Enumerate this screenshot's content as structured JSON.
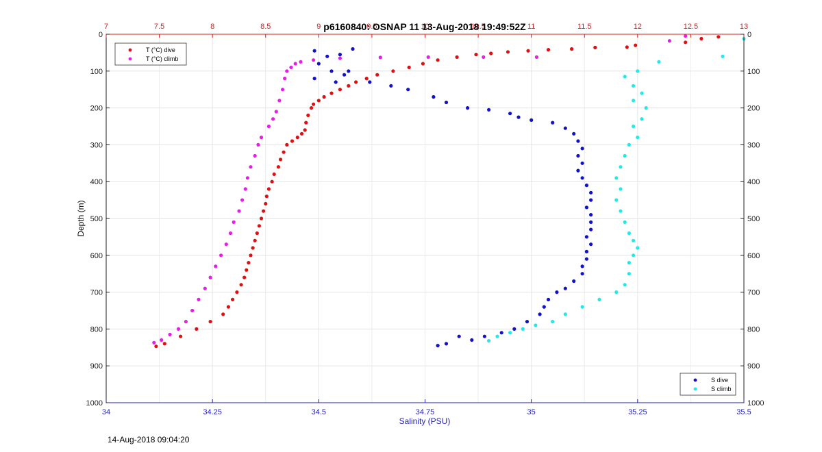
{
  "chart_data": {
    "type": "scatter",
    "title": "p6160840: OSNAP 11 13-Aug-2018 19:49:52Z",
    "xlabel": "Salinity (PSU)",
    "ylabel": "Depth (m)",
    "ylim": [
      0,
      1000
    ],
    "y_reversed": true,
    "bottom_axis": {
      "quantity": "salinity",
      "range": [
        34,
        35.5
      ],
      "ticks": [
        34,
        34.25,
        34.5,
        34.75,
        35,
        35.25,
        35.5
      ],
      "tick_labels": [
        "34",
        "34.25",
        "34.5",
        "34.75",
        "35",
        "35.25",
        "35.5"
      ],
      "color": "#1f1fbf"
    },
    "top_axis": {
      "quantity": "temperature",
      "range": [
        7,
        13
      ],
      "ticks": [
        7,
        7.5,
        8,
        8.5,
        9,
        9.5,
        10,
        10.5,
        11,
        11.5,
        12,
        12.5,
        13
      ],
      "tick_labels": [
        "7",
        "7.5",
        "8",
        "8.5",
        "9",
        "9.5",
        "10",
        "10.5",
        "11",
        "11.5",
        "12",
        "12.5",
        "13"
      ],
      "color": "#cc2222"
    },
    "y_ticks": [
      0,
      100,
      200,
      300,
      400,
      500,
      600,
      700,
      800,
      900,
      1000
    ],
    "y_tick_labels": [
      "0",
      "100",
      "200",
      "300",
      "400",
      "500",
      "600",
      "700",
      "800",
      "900",
      "1000"
    ],
    "grid": true,
    "legends": [
      {
        "placement": "top-left",
        "entries": [
          "T (°C) dive",
          "T (°C) climb"
        ]
      },
      {
        "placement": "bottom-right",
        "entries": [
          "S dive",
          "S climb"
        ]
      }
    ],
    "series": [
      {
        "name": "T (°C) dive",
        "axis": "top",
        "color": "#dd1111",
        "points": [
          [
            12.76,
            7
          ],
          [
            12.6,
            12
          ],
          [
            12.45,
            22
          ],
          [
            11.98,
            30
          ],
          [
            11.9,
            35
          ],
          [
            11.6,
            36
          ],
          [
            11.38,
            40
          ],
          [
            11.16,
            42
          ],
          [
            10.97,
            45
          ],
          [
            10.78,
            48
          ],
          [
            10.62,
            52
          ],
          [
            10.48,
            55
          ],
          [
            10.3,
            62
          ],
          [
            10.12,
            70
          ],
          [
            9.98,
            80
          ],
          [
            9.85,
            90
          ],
          [
            9.7,
            100
          ],
          [
            9.55,
            110
          ],
          [
            9.45,
            120
          ],
          [
            9.35,
            130
          ],
          [
            9.28,
            140
          ],
          [
            9.2,
            150
          ],
          [
            9.12,
            160
          ],
          [
            9.05,
            170
          ],
          [
            9.0,
            180
          ],
          [
            8.95,
            190
          ],
          [
            8.93,
            200
          ],
          [
            8.9,
            220
          ],
          [
            8.88,
            240
          ],
          [
            8.87,
            260
          ],
          [
            8.84,
            270
          ],
          [
            8.8,
            280
          ],
          [
            8.75,
            290
          ],
          [
            8.7,
            300
          ],
          [
            8.67,
            320
          ],
          [
            8.64,
            340
          ],
          [
            8.62,
            360
          ],
          [
            8.58,
            380
          ],
          [
            8.56,
            400
          ],
          [
            8.53,
            420
          ],
          [
            8.51,
            440
          ],
          [
            8.5,
            460
          ],
          [
            8.48,
            480
          ],
          [
            8.46,
            500
          ],
          [
            8.44,
            520
          ],
          [
            8.42,
            540
          ],
          [
            8.4,
            560
          ],
          [
            8.38,
            580
          ],
          [
            8.36,
            600
          ],
          [
            8.34,
            620
          ],
          [
            8.32,
            640
          ],
          [
            8.3,
            660
          ],
          [
            8.27,
            680
          ],
          [
            8.23,
            700
          ],
          [
            8.19,
            720
          ],
          [
            8.15,
            740
          ],
          [
            8.1,
            760
          ],
          [
            7.98,
            780
          ],
          [
            7.85,
            800
          ],
          [
            7.7,
            820
          ],
          [
            7.55,
            840
          ],
          [
            7.47,
            847
          ]
        ]
      },
      {
        "name": "T (°C) climb",
        "axis": "top",
        "color": "#e61ee6",
        "points": [
          [
            12.45,
            5
          ],
          [
            12.3,
            18
          ],
          [
            11.05,
            62
          ],
          [
            10.55,
            62
          ],
          [
            10.03,
            62
          ],
          [
            9.58,
            63
          ],
          [
            9.2,
            65
          ],
          [
            8.95,
            70
          ],
          [
            8.83,
            75
          ],
          [
            8.78,
            80
          ],
          [
            8.74,
            90
          ],
          [
            8.7,
            100
          ],
          [
            8.68,
            120
          ],
          [
            8.66,
            150
          ],
          [
            8.63,
            180
          ],
          [
            8.6,
            210
          ],
          [
            8.57,
            230
          ],
          [
            8.53,
            250
          ],
          [
            8.46,
            280
          ],
          [
            8.43,
            300
          ],
          [
            8.4,
            330
          ],
          [
            8.36,
            360
          ],
          [
            8.33,
            390
          ],
          [
            8.31,
            420
          ],
          [
            8.28,
            450
          ],
          [
            8.25,
            480
          ],
          [
            8.2,
            510
          ],
          [
            8.17,
            540
          ],
          [
            8.13,
            570
          ],
          [
            8.08,
            600
          ],
          [
            8.03,
            630
          ],
          [
            7.98,
            660
          ],
          [
            7.93,
            690
          ],
          [
            7.87,
            720
          ],
          [
            7.81,
            750
          ],
          [
            7.75,
            780
          ],
          [
            7.68,
            800
          ],
          [
            7.6,
            815
          ],
          [
            7.52,
            830
          ],
          [
            7.45,
            837
          ]
        ]
      },
      {
        "name": "S dive",
        "axis": "bottom",
        "color": "#1212c8",
        "points": [
          [
            34.49,
            45
          ],
          [
            34.52,
            60
          ],
          [
            34.55,
            55
          ],
          [
            34.58,
            40
          ],
          [
            34.5,
            80
          ],
          [
            34.53,
            100
          ],
          [
            34.56,
            110
          ],
          [
            34.49,
            120
          ],
          [
            34.54,
            130
          ],
          [
            34.57,
            100
          ],
          [
            34.62,
            130
          ],
          [
            34.67,
            140
          ],
          [
            34.71,
            150
          ],
          [
            34.77,
            170
          ],
          [
            34.8,
            185
          ],
          [
            34.85,
            200
          ],
          [
            34.9,
            205
          ],
          [
            34.95,
            215
          ],
          [
            34.97,
            225
          ],
          [
            35.0,
            233
          ],
          [
            35.05,
            240
          ],
          [
            35.08,
            255
          ],
          [
            35.1,
            270
          ],
          [
            35.11,
            290
          ],
          [
            35.12,
            310
          ],
          [
            35.11,
            330
          ],
          [
            35.12,
            350
          ],
          [
            35.11,
            370
          ],
          [
            35.12,
            390
          ],
          [
            35.13,
            410
          ],
          [
            35.14,
            430
          ],
          [
            35.14,
            450
          ],
          [
            35.13,
            470
          ],
          [
            35.14,
            490
          ],
          [
            35.14,
            510
          ],
          [
            35.14,
            530
          ],
          [
            35.13,
            550
          ],
          [
            35.14,
            570
          ],
          [
            35.13,
            590
          ],
          [
            35.13,
            610
          ],
          [
            35.12,
            630
          ],
          [
            35.12,
            650
          ],
          [
            35.1,
            670
          ],
          [
            35.08,
            690
          ],
          [
            35.06,
            700
          ],
          [
            35.04,
            720
          ],
          [
            35.03,
            740
          ],
          [
            35.02,
            760
          ],
          [
            34.99,
            780
          ],
          [
            34.96,
            800
          ],
          [
            34.93,
            810
          ],
          [
            34.89,
            820
          ],
          [
            34.86,
            830
          ],
          [
            34.83,
            820
          ],
          [
            34.8,
            840
          ],
          [
            34.78,
            845
          ]
        ]
      },
      {
        "name": "S climb",
        "axis": "bottom",
        "color": "#22e8e8",
        "points": [
          [
            35.5,
            12
          ],
          [
            35.45,
            60
          ],
          [
            35.3,
            75
          ],
          [
            35.25,
            100
          ],
          [
            35.22,
            115
          ],
          [
            35.24,
            140
          ],
          [
            35.26,
            160
          ],
          [
            35.24,
            180
          ],
          [
            35.27,
            200
          ],
          [
            35.26,
            230
          ],
          [
            35.24,
            250
          ],
          [
            35.25,
            280
          ],
          [
            35.23,
            300
          ],
          [
            35.22,
            330
          ],
          [
            35.21,
            360
          ],
          [
            35.2,
            390
          ],
          [
            35.21,
            420
          ],
          [
            35.2,
            450
          ],
          [
            35.21,
            480
          ],
          [
            35.22,
            510
          ],
          [
            35.23,
            540
          ],
          [
            35.24,
            560
          ],
          [
            35.25,
            580
          ],
          [
            35.24,
            600
          ],
          [
            35.23,
            620
          ],
          [
            35.23,
            650
          ],
          [
            35.22,
            680
          ],
          [
            35.2,
            700
          ],
          [
            35.16,
            720
          ],
          [
            35.12,
            740
          ],
          [
            35.08,
            760
          ],
          [
            35.05,
            780
          ],
          [
            35.01,
            790
          ],
          [
            34.98,
            800
          ],
          [
            34.95,
            810
          ],
          [
            34.92,
            820
          ],
          [
            34.9,
            832
          ]
        ]
      }
    ]
  },
  "footer": {
    "timestamp": "14-Aug-2018 09:04:20"
  }
}
